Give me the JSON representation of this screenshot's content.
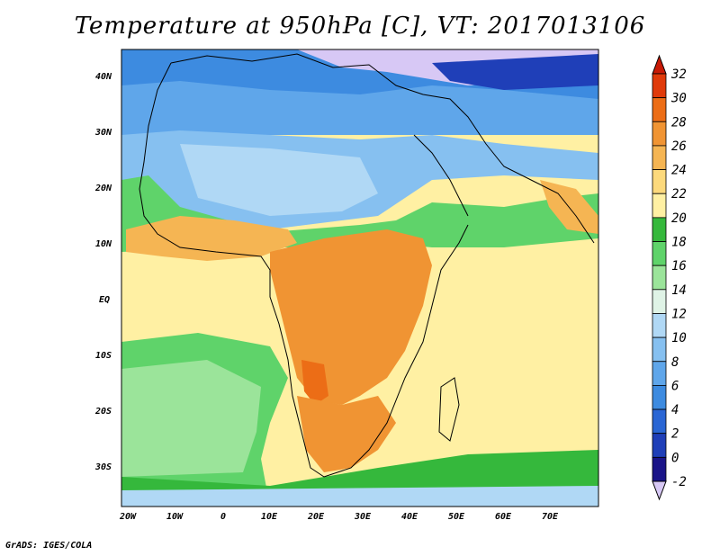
{
  "title": "Temperature at 950hPa [C], VT: 2017013106",
  "credit": "GrADS: IGES/COLA",
  "map": {
    "lat_labels": [
      "40N",
      "30N",
      "20N",
      "10N",
      "EQ",
      "10S",
      "20S",
      "30S"
    ],
    "lon_labels": [
      "20W",
      "10W",
      "0",
      "10E",
      "20E",
      "30E",
      "40E",
      "50E",
      "60E",
      "70E"
    ],
    "lat_range": [
      -37,
      45
    ],
    "lon_range": [
      -23,
      80
    ]
  },
  "colorbar": {
    "levels": [
      "32",
      "30",
      "28",
      "26",
      "24",
      "22",
      "20",
      "18",
      "16",
      "14",
      "12",
      "10",
      "8",
      "6",
      "4",
      "2",
      "0",
      "-2"
    ],
    "colors": [
      "#d7c8f5",
      "#1a1488",
      "#1f3fb8",
      "#2a66d4",
      "#3d8be0",
      "#5fa6ea",
      "#86c0f0",
      "#b0d8f5",
      "#dff3e6",
      "#9be49a",
      "#5fd36a",
      "#35b83c",
      "#fff0a3",
      "#fcd97c",
      "#f5b553",
      "#f09433",
      "#ec6d16",
      "#e03a0a",
      "#c81a06"
    ]
  }
}
